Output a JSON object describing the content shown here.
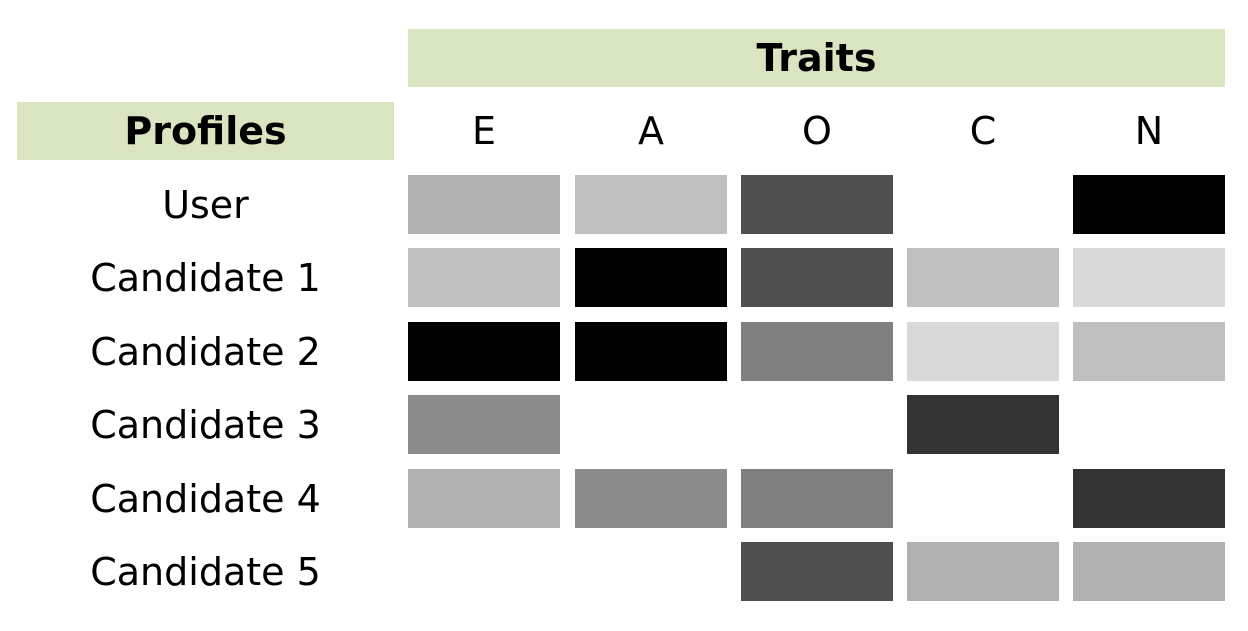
{
  "chart_data": {
    "type": "heatmap",
    "title": "Traits",
    "row_header": "Profiles",
    "columns": [
      "E",
      "A",
      "O",
      "C",
      "N"
    ],
    "rows": [
      "User",
      "Candidate 1",
      "Candidate 2",
      "Candidate 3",
      "Candidate 4",
      "Candidate 5"
    ],
    "values": [
      [
        0.31,
        0.25,
        0.69,
        0.0,
        1.0
      ],
      [
        0.25,
        1.0,
        0.69,
        0.25,
        0.15
      ],
      [
        1.0,
        1.0,
        0.5,
        0.15,
        0.25
      ],
      [
        0.45,
        0.0,
        0.0,
        0.8,
        0.0
      ],
      [
        0.31,
        0.45,
        0.5,
        0.0,
        0.8
      ],
      [
        0.0,
        0.0,
        0.69,
        0.31,
        0.31
      ]
    ],
    "colors": {
      "header_bg": "#d9e4c0",
      "low": "#ffffff",
      "high": "#000000"
    }
  }
}
